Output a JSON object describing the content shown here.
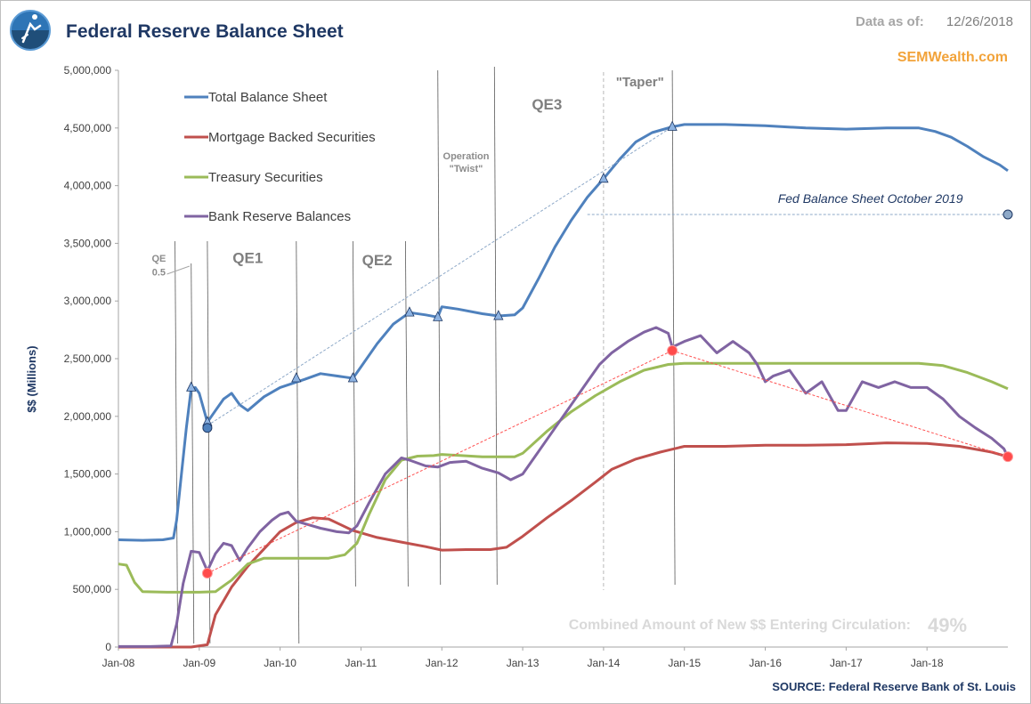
{
  "header": {
    "title": "Federal Reserve Balance Sheet",
    "as_of_label": "Data as of:",
    "as_of_value": "12/26/2018",
    "brand": "SEMWealth.com",
    "logo_icon": "semwealth-logo-icon"
  },
  "footer": {
    "combined_label": "Combined Amount of New $$ Entering Circulation:",
    "combined_value": "49%",
    "source": "SOURCE:  Federal Reserve Bank of St. Louis"
  },
  "colors": {
    "total": "#4f81bd",
    "mbs": "#c0504d",
    "treasury": "#9bbb59",
    "reserves": "#8064a2",
    "title": "#1f3864",
    "brand": "#f2a33a"
  },
  "chart_data": {
    "type": "line",
    "title": "Federal Reserve Balance Sheet",
    "xlabel": "",
    "ylabel": "$$ (Millions)",
    "xlim": [
      2008.0,
      2019.0
    ],
    "ylim": [
      0,
      5000000
    ],
    "yticks": [
      0,
      500000,
      1000000,
      1500000,
      2000000,
      2500000,
      3000000,
      3500000,
      4000000,
      4500000,
      5000000
    ],
    "ytick_labels": [
      "0",
      "500,000",
      "1,000,000",
      "1,500,000",
      "2,000,000",
      "2,500,000",
      "3,000,000",
      "3,500,000",
      "4,000,000",
      "4,500,000",
      "5,000,000"
    ],
    "xticks": [
      2008,
      2009,
      2010,
      2011,
      2012,
      2013,
      2014,
      2015,
      2016,
      2017,
      2018
    ],
    "xtick_labels": [
      "Jan-08",
      "Jan-09",
      "Jan-10",
      "Jan-11",
      "Jan-12",
      "Jan-13",
      "Jan-14",
      "Jan-15",
      "Jan-16",
      "Jan-17",
      "Jan-18"
    ],
    "legend": [
      "Total Balance Sheet",
      "Mortgage Backed Securities",
      "Treasury Securities",
      "Bank Reserve Balances"
    ],
    "series": [
      {
        "name": "Total Balance Sheet",
        "color": "#4f81bd",
        "x": [
          2008.0,
          2008.3,
          2008.55,
          2008.68,
          2008.72,
          2008.78,
          2008.84,
          2008.9,
          2008.95,
          2009.0,
          2009.1,
          2009.2,
          2009.3,
          2009.4,
          2009.5,
          2009.6,
          2009.8,
          2010.0,
          2010.3,
          2010.5,
          2010.8,
          2010.9,
          2011.0,
          2011.2,
          2011.4,
          2011.6,
          2011.8,
          2011.95,
          2012.0,
          2012.2,
          2012.5,
          2012.7,
          2012.9,
          2013.0,
          2013.2,
          2013.4,
          2013.6,
          2013.8,
          2014.0,
          2014.2,
          2014.4,
          2014.6,
          2014.85,
          2015.0,
          2015.5,
          2016.0,
          2016.5,
          2017.0,
          2017.5,
          2017.9,
          2018.1,
          2018.3,
          2018.5,
          2018.7,
          2018.9,
          2019.0
        ],
        "values": [
          930000,
          925000,
          930000,
          945000,
          1100000,
          1500000,
          1900000,
          2240000,
          2250000,
          2200000,
          1950000,
          2050000,
          2150000,
          2200000,
          2100000,
          2050000,
          2170000,
          2250000,
          2320000,
          2370000,
          2340000,
          2330000,
          2430000,
          2630000,
          2800000,
          2900000,
          2880000,
          2860000,
          2950000,
          2930000,
          2890000,
          2870000,
          2880000,
          2940000,
          3200000,
          3470000,
          3700000,
          3900000,
          4060000,
          4230000,
          4380000,
          4460000,
          4510000,
          4530000,
          4530000,
          4520000,
          4500000,
          4490000,
          4500000,
          4500000,
          4470000,
          4420000,
          4340000,
          4250000,
          4180000,
          4130000
        ]
      },
      {
        "name": "Mortgage Backed Securities",
        "color": "#c0504d",
        "x": [
          2008.0,
          2008.9,
          2009.1,
          2009.2,
          2009.4,
          2009.6,
          2009.8,
          2010.0,
          2010.2,
          2010.4,
          2010.6,
          2010.9,
          2011.2,
          2011.5,
          2011.8,
          2012.0,
          2012.3,
          2012.6,
          2012.8,
          2013.0,
          2013.3,
          2013.6,
          2013.9,
          2014.1,
          2014.4,
          2014.7,
          2015.0,
          2015.5,
          2016.0,
          2016.5,
          2017.0,
          2017.5,
          2018.0,
          2018.4,
          2018.8,
          2019.0
        ],
        "values": [
          0,
          0,
          20000,
          280000,
          520000,
          700000,
          850000,
          1000000,
          1080000,
          1120000,
          1110000,
          1010000,
          950000,
          910000,
          870000,
          840000,
          845000,
          845000,
          865000,
          960000,
          1120000,
          1270000,
          1430000,
          1540000,
          1630000,
          1690000,
          1740000,
          1740000,
          1750000,
          1750000,
          1755000,
          1770000,
          1765000,
          1740000,
          1690000,
          1650000
        ]
      },
      {
        "name": "Treasury Securities",
        "color": "#9bbb59",
        "x": [
          2008.0,
          2008.1,
          2008.2,
          2008.3,
          2008.6,
          2009.0,
          2009.2,
          2009.4,
          2009.6,
          2009.8,
          2010.0,
          2010.3,
          2010.6,
          2010.8,
          2010.95,
          2011.1,
          2011.3,
          2011.5,
          2011.7,
          2011.9,
          2012.0,
          2012.5,
          2012.9,
          2013.0,
          2013.3,
          2013.6,
          2013.9,
          2014.2,
          2014.5,
          2014.8,
          2015.0,
          2015.5,
          2016.0,
          2016.5,
          2017.0,
          2017.5,
          2017.9,
          2018.2,
          2018.5,
          2018.8,
          2019.0
        ],
        "values": [
          720000,
          710000,
          560000,
          480000,
          475000,
          475000,
          480000,
          580000,
          720000,
          770000,
          770000,
          770000,
          770000,
          800000,
          900000,
          1150000,
          1450000,
          1620000,
          1655000,
          1660000,
          1670000,
          1650000,
          1650000,
          1680000,
          1870000,
          2040000,
          2180000,
          2300000,
          2400000,
          2450000,
          2460000,
          2460000,
          2460000,
          2460000,
          2460000,
          2460000,
          2460000,
          2440000,
          2380000,
          2300000,
          2240000
        ]
      },
      {
        "name": "Bank Reserve Balances",
        "color": "#8064a2",
        "x": [
          2008.0,
          2008.4,
          2008.65,
          2008.72,
          2008.8,
          2008.9,
          2009.0,
          2009.1,
          2009.2,
          2009.3,
          2009.4,
          2009.5,
          2009.6,
          2009.75,
          2009.9,
          2010.0,
          2010.1,
          2010.2,
          2010.35,
          2010.5,
          2010.7,
          2010.85,
          2010.95,
          2011.1,
          2011.3,
          2011.5,
          2011.6,
          2011.8,
          2011.95,
          2012.1,
          2012.3,
          2012.5,
          2012.7,
          2012.85,
          2013.0,
          2013.2,
          2013.4,
          2013.6,
          2013.8,
          2013.95,
          2014.1,
          2014.3,
          2014.5,
          2014.65,
          2014.8,
          2014.85,
          2015.0,
          2015.2,
          2015.4,
          2015.6,
          2015.8,
          2015.9,
          2016.0,
          2016.1,
          2016.3,
          2016.5,
          2016.7,
          2016.9,
          2017.0,
          2017.2,
          2017.4,
          2017.6,
          2017.8,
          2018.0,
          2018.2,
          2018.4,
          2018.6,
          2018.8,
          2018.95,
          2019.0
        ],
        "values": [
          5000,
          5000,
          10000,
          200000,
          550000,
          830000,
          820000,
          660000,
          810000,
          900000,
          880000,
          750000,
          860000,
          1000000,
          1100000,
          1150000,
          1170000,
          1090000,
          1060000,
          1030000,
          1000000,
          990000,
          1050000,
          1250000,
          1500000,
          1640000,
          1620000,
          1570000,
          1560000,
          1600000,
          1610000,
          1550000,
          1510000,
          1450000,
          1500000,
          1700000,
          1900000,
          2100000,
          2300000,
          2450000,
          2550000,
          2650000,
          2730000,
          2770000,
          2720000,
          2600000,
          2650000,
          2700000,
          2550000,
          2650000,
          2550000,
          2450000,
          2300000,
          2350000,
          2400000,
          2200000,
          2300000,
          2050000,
          2050000,
          2300000,
          2250000,
          2300000,
          2250000,
          2250000,
          2150000,
          2000000,
          1900000,
          1810000,
          1720000,
          1650000
        ]
      }
    ],
    "markers": [
      {
        "series": "Total Balance Sheet",
        "x": 2008.9,
        "y": 2250000,
        "shape": "triangle"
      },
      {
        "series": "Total Balance Sheet",
        "x": 2009.1,
        "y": 1950000,
        "shape": "triangle"
      },
      {
        "series": "Total Balance Sheet",
        "x": 2009.1,
        "y": 1900000,
        "shape": "circle"
      },
      {
        "series": "Total Balance Sheet",
        "x": 2010.2,
        "y": 2330000,
        "shape": "triangle"
      },
      {
        "series": "Total Balance Sheet",
        "x": 2010.9,
        "y": 2330000,
        "shape": "triangle"
      },
      {
        "series": "Total Balance Sheet",
        "x": 2011.6,
        "y": 2900000,
        "shape": "triangle"
      },
      {
        "series": "Total Balance Sheet",
        "x": 2011.95,
        "y": 2860000,
        "shape": "triangle"
      },
      {
        "series": "Total Balance Sheet",
        "x": 2012.7,
        "y": 2870000,
        "shape": "triangle"
      },
      {
        "series": "Total Balance Sheet",
        "x": 2014.0,
        "y": 4060000,
        "shape": "triangle"
      },
      {
        "series": "Total Balance Sheet",
        "x": 2014.85,
        "y": 4510000,
        "shape": "triangle"
      },
      {
        "series": "Bank Reserve Balances",
        "x": 2009.1,
        "y": 640000,
        "shape": "circle"
      },
      {
        "series": "Bank Reserve Balances",
        "x": 2014.85,
        "y": 2570000,
        "shape": "circle"
      },
      {
        "series": "Bank Reserve Balances",
        "x": 2019.0,
        "y": 1650000,
        "shape": "circle"
      },
      {
        "series": "Projection",
        "x": 2019.0,
        "y": 3750000,
        "shape": "circle"
      }
    ],
    "trend_lines": [
      {
        "name": "Total balance trend",
        "color": "#8ea9c8",
        "from": [
          2009.1,
          1920000
        ],
        "to": [
          2014.85,
          4510000
        ]
      },
      {
        "name": "Reserves rise trend",
        "color": "#ff5050",
        "from": [
          2009.1,
          640000
        ],
        "to": [
          2014.85,
          2570000
        ]
      },
      {
        "name": "Reserves decline trend",
        "color": "#ff5050",
        "from": [
          2014.85,
          2570000
        ],
        "to": [
          2019.0,
          1650000
        ]
      },
      {
        "name": "October 2019 projection",
        "color": "#8ea9c8",
        "from": [
          2013.8,
          3750000
        ],
        "to": [
          2019.0,
          3750000
        ]
      }
    ],
    "event_lines": [
      2008.7,
      2008.9,
      2009.1,
      2010.2,
      2010.9,
      2011.55,
      2011.95,
      2012.65,
      2014.85
    ],
    "event_dashed_lines": [
      2014.0
    ],
    "annotations": [
      {
        "text": "QE",
        "x": 2008.5,
        "y": 3340000,
        "style": "small"
      },
      {
        "text": "0.5",
        "x": 2008.5,
        "y": 3220000,
        "style": "small"
      },
      {
        "text": "QE1",
        "x": 2009.6,
        "y": 3330000,
        "style": "big"
      },
      {
        "text": "QE2",
        "x": 2011.2,
        "y": 3310000,
        "style": "big"
      },
      {
        "text": "Operation",
        "x": 2012.3,
        "y": 4230000,
        "style": "small"
      },
      {
        "text": "\"Twist\"",
        "x": 2012.3,
        "y": 4120000,
        "style": "small"
      },
      {
        "text": "QE3",
        "x": 2013.3,
        "y": 4660000,
        "style": "big"
      },
      {
        "text": "\"Taper\"",
        "x": 2014.45,
        "y": 4860000,
        "style": "taper"
      },
      {
        "text": "Fed Balance Sheet October 2019",
        "x": 2017.3,
        "y": 3850000,
        "style": "italic"
      }
    ]
  }
}
